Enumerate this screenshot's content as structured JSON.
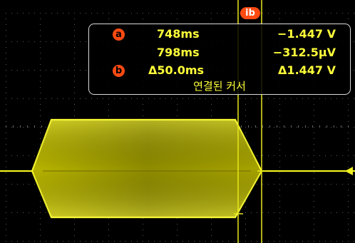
{
  "colors": {
    "background": "#000000",
    "trace": "#e8e81a",
    "readout_text": "#ffff3a",
    "badge": "#ff4a12",
    "readout_border": "#d9d9d9"
  },
  "readout": {
    "badge_top": "ib",
    "rows": [
      {
        "badge": "a",
        "time": "748ms",
        "value": "−1.447 V"
      },
      {
        "badge": "",
        "time": "798ms",
        "value": "−312.5μV"
      },
      {
        "badge": "b",
        "time": "Δ50.0ms",
        "value": "Δ1.447 V"
      }
    ],
    "caption": "연결된 커서"
  },
  "icons": {
    "trigger_level_marker": "left-pointing-arrow-icon"
  }
}
